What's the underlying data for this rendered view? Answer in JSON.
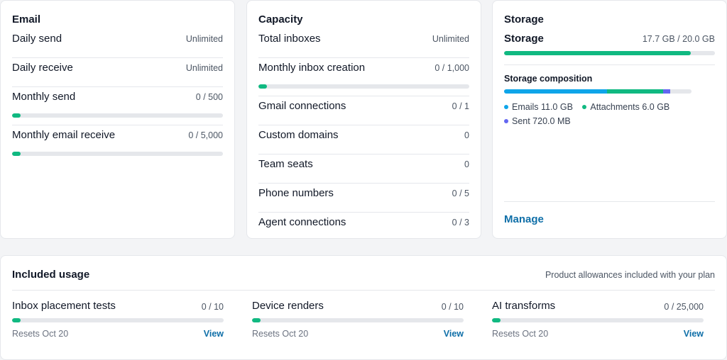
{
  "email": {
    "title": "Email",
    "rows": [
      {
        "label": "Daily send",
        "value": "Unlimited"
      },
      {
        "label": "Daily receive",
        "value": "Unlimited"
      },
      {
        "label": "Monthly send",
        "value": "0 / 500",
        "progress": 0.04
      },
      {
        "label": "Monthly email receive",
        "value": "0 / 5,000",
        "progress": 0.04
      }
    ]
  },
  "capacity": {
    "title": "Capacity",
    "rows": [
      {
        "label": "Total inboxes",
        "value": "Unlimited"
      },
      {
        "label": "Monthly inbox creation",
        "value": "0 / 1,000",
        "progress": 0.04
      },
      {
        "label": "Gmail connections",
        "value": "0 / 1"
      },
      {
        "label": "Custom domains",
        "value": "0"
      },
      {
        "label": "Team seats",
        "value": "0"
      },
      {
        "label": "Phone numbers",
        "value": "0 / 5"
      },
      {
        "label": "Agent connections",
        "value": "0 / 3"
      }
    ]
  },
  "storage": {
    "title": "Storage",
    "label": "Storage",
    "value": "17.7 GB / 20.0 GB",
    "progress": 0.885,
    "composition_title": "Storage composition",
    "composition": [
      {
        "label": "Emails 11.0 GB",
        "fraction": 0.55,
        "color": "#0ea5e9"
      },
      {
        "label": "Attachments 6.0 GB",
        "fraction": 0.3,
        "color": "#10b981"
      },
      {
        "label": "Sent 720.0 MB",
        "fraction": 0.036,
        "color": "#6366f1"
      }
    ],
    "manage_label": "Manage"
  },
  "included": {
    "title": "Included usage",
    "subtitle": "Product allowances included with your plan",
    "items": [
      {
        "label": "Inbox placement tests",
        "value": "0 / 10",
        "progress": 0.04,
        "reset": "Resets Oct 20",
        "view": "View"
      },
      {
        "label": "Device renders",
        "value": "0 / 10",
        "progress": 0.04,
        "reset": "Resets Oct 20",
        "view": "View"
      },
      {
        "label": "AI transforms",
        "value": "0 / 25,000",
        "progress": 0.04,
        "reset": "Resets Oct 20",
        "view": "View"
      }
    ]
  },
  "colors": {
    "accent": "#10b981",
    "link": "#0f6fa8",
    "track": "#e5e7eb"
  }
}
